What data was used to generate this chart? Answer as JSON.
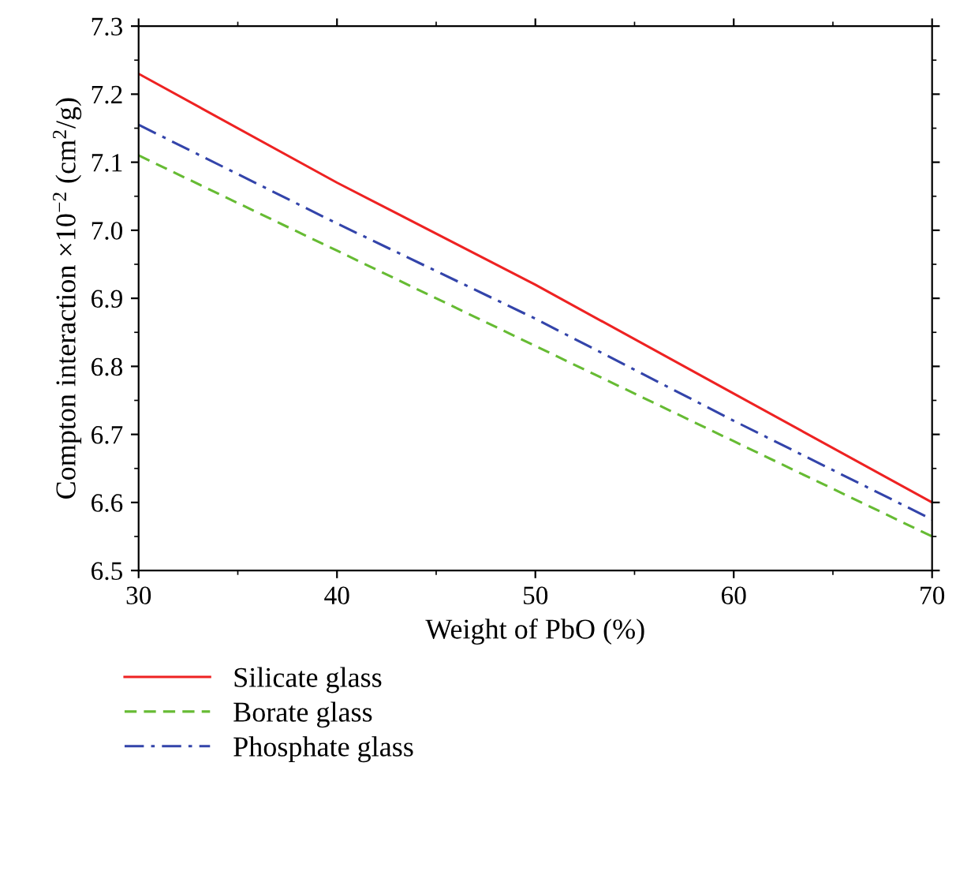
{
  "chart_data": {
    "type": "line",
    "xlabel": "Weight of PbO (%)",
    "ylabel": "Compton interaction ×10$^{−2}$ (cm$^{2}$/g)",
    "x": [
      30,
      40,
      50,
      60,
      70
    ],
    "series": [
      {
        "name": "Silicate glass",
        "color": "#ee2222",
        "line_style": "solid",
        "values": [
          7.23,
          7.07,
          6.92,
          6.76,
          6.6
        ]
      },
      {
        "name": "Borate glass",
        "color": "#66bb33",
        "line_style": "dashed",
        "values": [
          7.11,
          6.97,
          6.83,
          6.69,
          6.55
        ]
      },
      {
        "name": "Phosphate glass",
        "color": "#3344aa",
        "line_style": "dashdot",
        "values": [
          7.155,
          7.01,
          6.87,
          6.72,
          6.575
        ]
      }
    ],
    "xlim": [
      30,
      70
    ],
    "xticks": [
      30,
      40,
      50,
      60,
      70
    ],
    "ylim": [
      6.5,
      7.3
    ],
    "yticks": [
      {
        "value": 6.5,
        "label": "6.5"
      },
      {
        "value": 6.6,
        "label": "6.6"
      },
      {
        "value": 6.7,
        "label": "6.7"
      },
      {
        "value": 6.8,
        "label": "6.8"
      },
      {
        "value": 6.9,
        "label": "6.9"
      },
      {
        "value": 7.0,
        "label": "7.0"
      },
      {
        "value": 7.1,
        "label": "7.1"
      },
      {
        "value": 7.2,
        "label": "7.2"
      },
      {
        "value": 7.3,
        "label": "7.3"
      }
    ],
    "grid": false,
    "legend": "bottom",
    "marker": "none"
  }
}
